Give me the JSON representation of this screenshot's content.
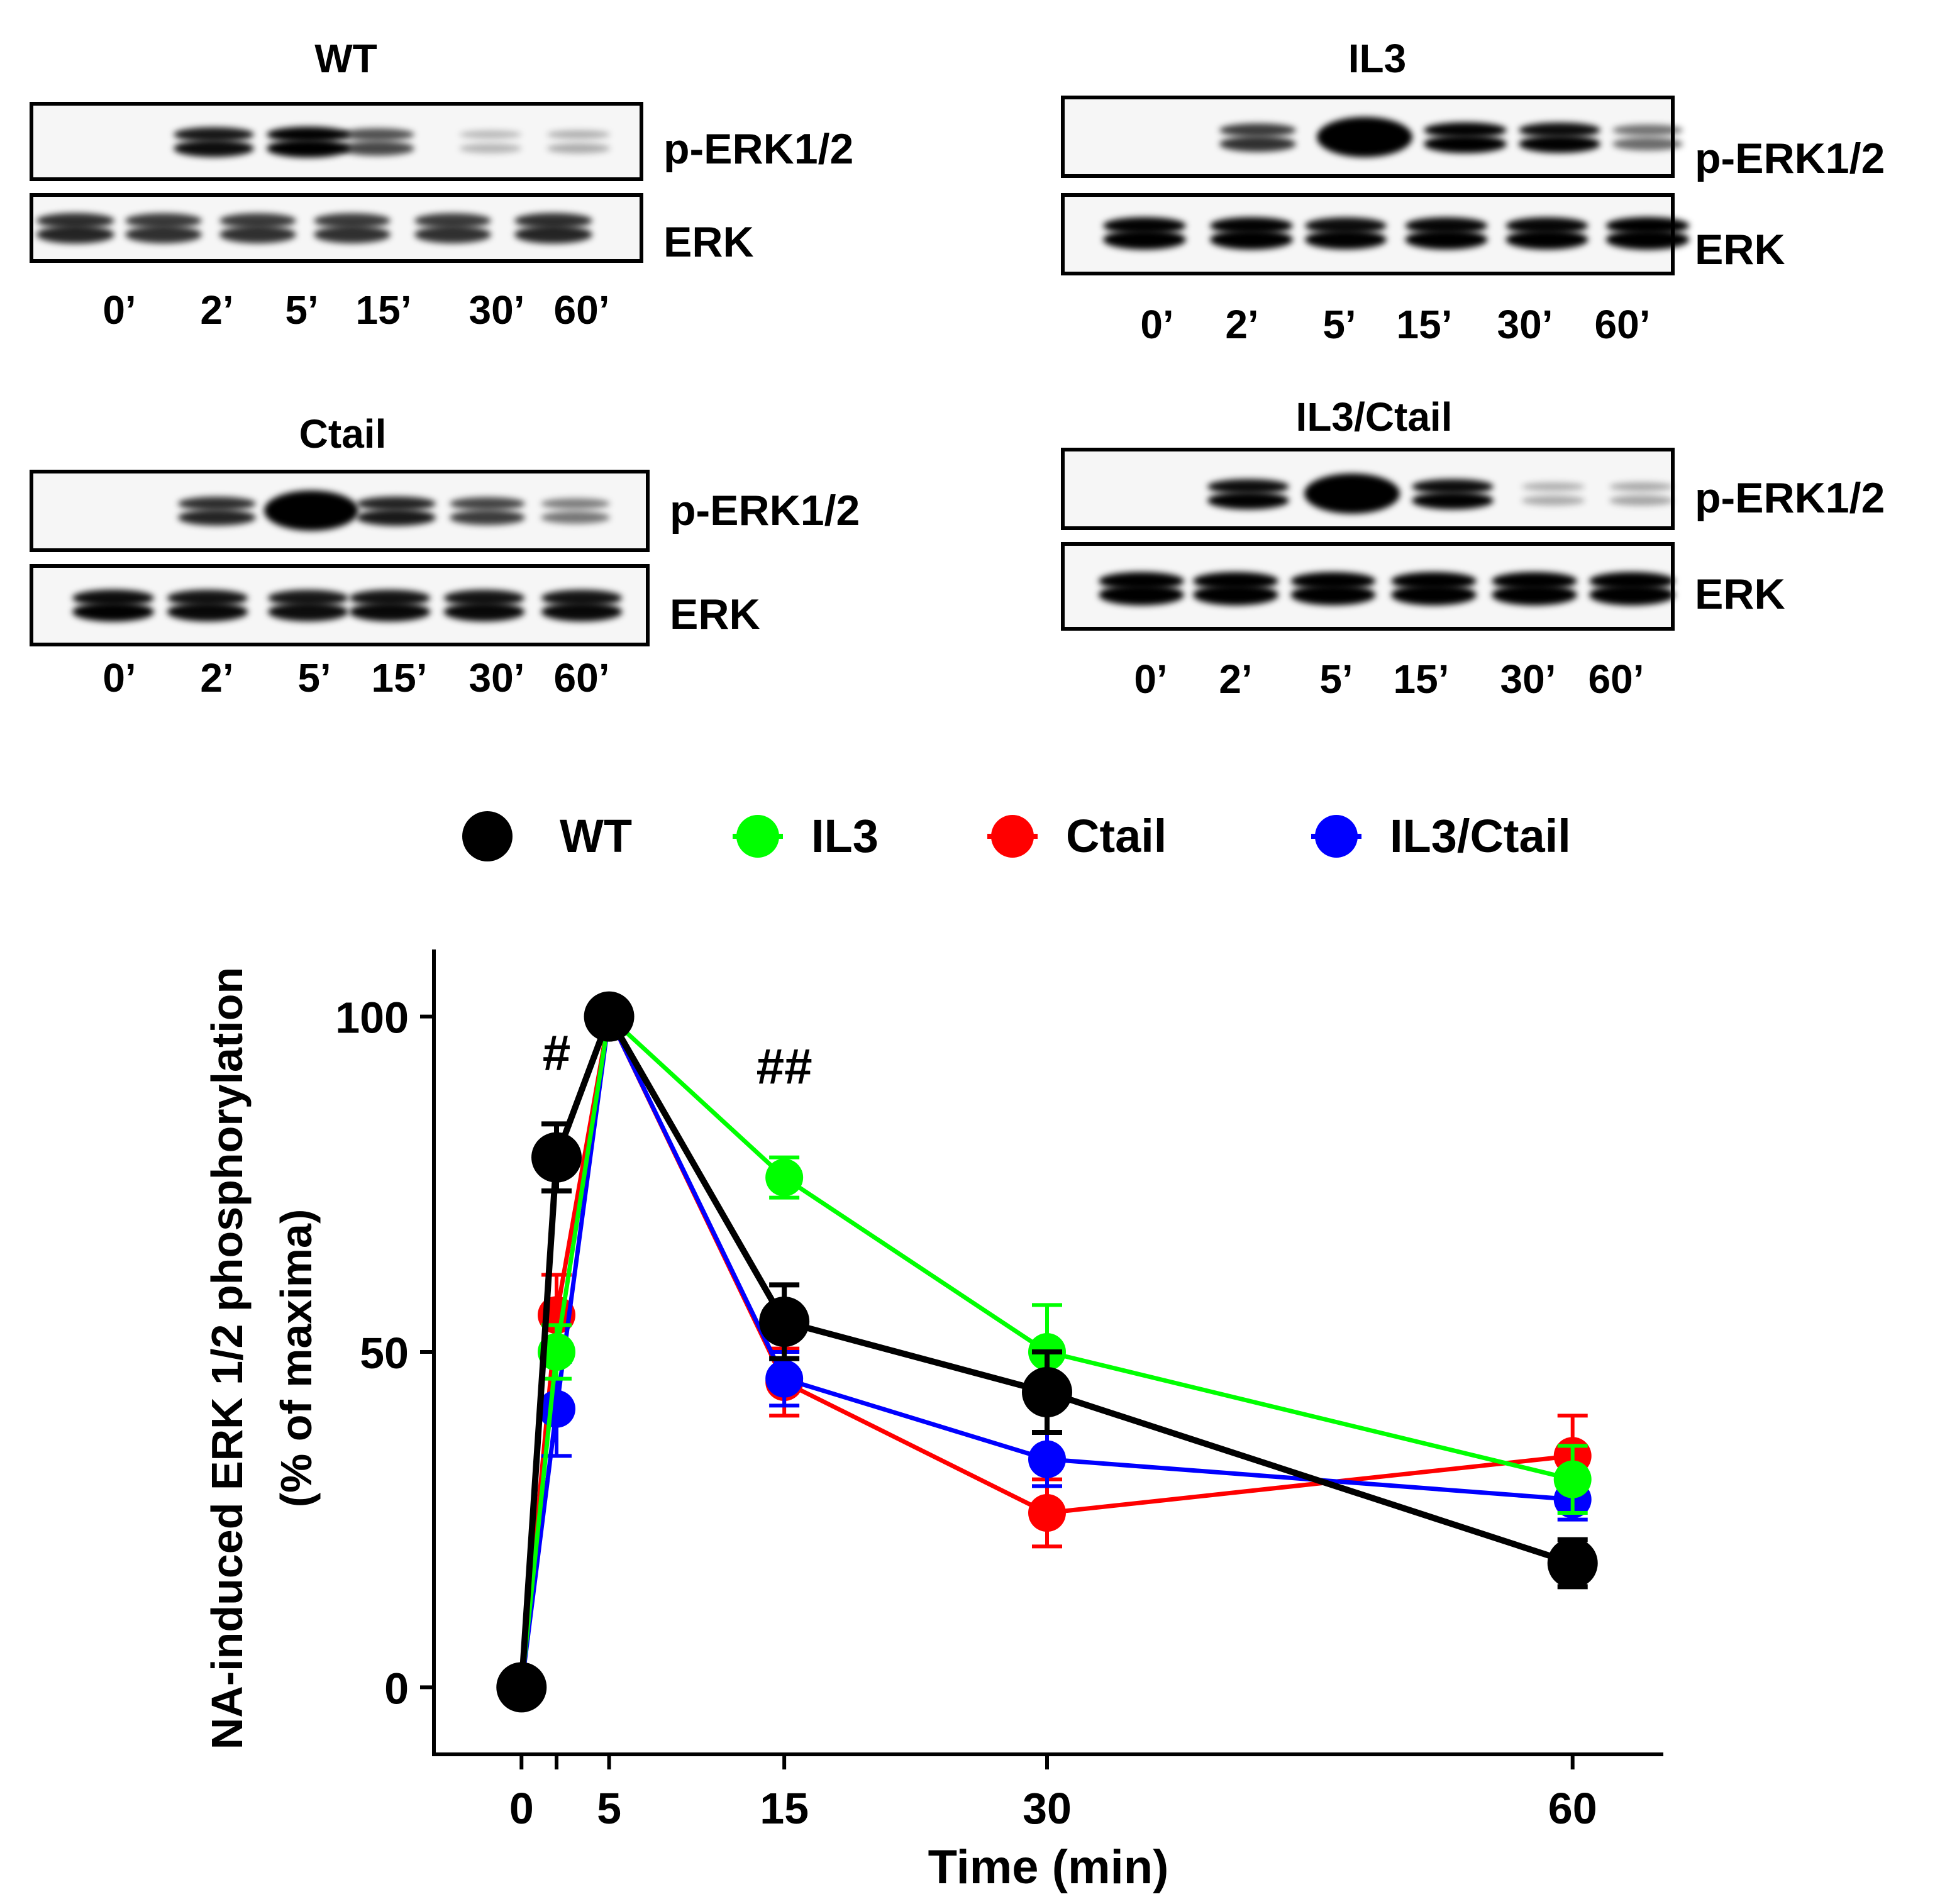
{
  "blots": [
    {
      "id": "wt",
      "title": "WT",
      "phospho_label": "p-ERK1/2",
      "total_label": "ERK",
      "lanes": [
        "0’",
        "2’",
        "5’",
        "15’",
        "30’",
        "60’"
      ],
      "phospho_intensity": [
        0.0,
        0.8,
        0.9,
        0.55,
        0.08,
        0.12
      ],
      "total_intensity": [
        0.7,
        0.65,
        0.65,
        0.65,
        0.65,
        0.7
      ]
    },
    {
      "id": "il3",
      "title": "IL3",
      "phospho_label": "p-ERK1/2",
      "total_label": "ERK",
      "lanes": [
        "0’",
        "2’",
        "5’",
        "15’",
        "30’",
        "60’"
      ],
      "phospho_intensity": [
        0.0,
        0.65,
        1.0,
        0.9,
        0.85,
        0.4
      ],
      "total_intensity": [
        0.9,
        0.9,
        0.85,
        0.88,
        0.88,
        0.92
      ]
    },
    {
      "id": "ctail",
      "title": "Ctail",
      "phospho_label": "p-ERK1/2",
      "total_label": "ERK",
      "lanes": [
        "0’",
        "2’",
        "5’",
        "15’",
        "30’",
        "60’"
      ],
      "phospho_intensity": [
        0.0,
        0.7,
        0.95,
        0.75,
        0.6,
        0.35
      ],
      "total_intensity": [
        0.85,
        0.82,
        0.8,
        0.82,
        0.82,
        0.82
      ]
    },
    {
      "id": "il3ctail",
      "title": "IL3/Ctail",
      "phospho_label": "p-ERK1/2",
      "total_label": "ERK",
      "lanes": [
        "0’",
        "2’",
        "5’",
        "15’",
        "30’",
        "60’"
      ],
      "phospho_intensity": [
        0.0,
        0.85,
        1.0,
        0.85,
        0.12,
        0.15
      ],
      "total_intensity": [
        1.0,
        1.0,
        0.98,
        1.0,
        1.0,
        1.0
      ]
    }
  ],
  "chart_data": {
    "type": "line",
    "title": "",
    "xlabel": "Time (min)",
    "ylabel": "NA-induced ERK 1/2 phosphorylation",
    "ylabel2": "(% of maxima)",
    "x": [
      0,
      2,
      5,
      15,
      30,
      60
    ],
    "xticks": [
      0,
      5,
      15,
      30,
      60
    ],
    "xtick_labels": [
      "0",
      "5",
      "15",
      "30",
      "60"
    ],
    "yticks": [
      0,
      50,
      100
    ],
    "ytick_labels": [
      "0",
      "50",
      "100"
    ],
    "xlim": [
      -5,
      65
    ],
    "ylim": [
      -10,
      110
    ],
    "legend_position": "top",
    "series": [
      {
        "name": "WT",
        "color": "#000000",
        "values": [
          0,
          79,
          100,
          54.5,
          44,
          18.5
        ],
        "errors": [
          0,
          5,
          0,
          5.5,
          6,
          3.5
        ]
      },
      {
        "name": "IL3",
        "color": "#00ff00",
        "values": [
          0,
          50,
          100,
          76,
          50,
          31
        ],
        "errors": [
          0,
          4,
          0,
          3,
          7,
          5
        ]
      },
      {
        "name": "Ctail",
        "color": "#ff0000",
        "values": [
          0,
          55.5,
          100,
          45.5,
          26,
          34.5
        ],
        "errors": [
          0,
          6,
          0,
          5,
          5,
          6
        ]
      },
      {
        "name": "IL3/Ctail",
        "color": "#0000ff",
        "values": [
          0,
          41.5,
          100,
          46,
          34,
          28
        ],
        "errors": [
          0,
          7,
          0,
          4,
          4,
          3
        ]
      }
    ],
    "annotations": [
      {
        "text": "#",
        "x": 2,
        "y": 92
      },
      {
        "text": "##",
        "x": 15,
        "y": 90
      }
    ]
  }
}
